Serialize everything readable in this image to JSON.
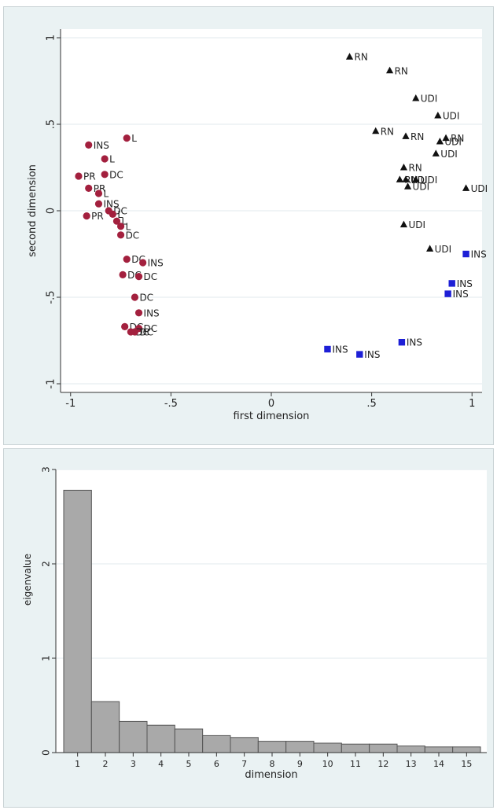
{
  "chart_data": [
    {
      "type": "scatter",
      "title": "",
      "xlabel": "first dimension",
      "ylabel": "second dimension",
      "xlim": [
        -1.05,
        1.05
      ],
      "ylim": [
        -1.05,
        1.05
      ],
      "xticks": [
        -1,
        -0.5,
        0,
        0.5,
        1
      ],
      "xtick_labels": [
        "-1",
        "-.5",
        "0",
        ".5",
        "1"
      ],
      "yticks": [
        -1,
        -0.5,
        0,
        0.5,
        1
      ],
      "ytick_labels": [
        "-1",
        "-.5",
        "0",
        ".5",
        "1"
      ],
      "grid": true,
      "groups": [
        {
          "marker": "circle",
          "color": "#a3203e",
          "points": [
            {
              "x": -0.72,
              "y": 0.42,
              "label": "L"
            },
            {
              "x": -0.91,
              "y": 0.38,
              "label": "INS"
            },
            {
              "x": -0.83,
              "y": 0.3,
              "label": "L"
            },
            {
              "x": -0.83,
              "y": 0.21,
              "label": "DC"
            },
            {
              "x": -0.96,
              "y": 0.2,
              "label": "PR"
            },
            {
              "x": -0.91,
              "y": 0.13,
              "label": "PR"
            },
            {
              "x": -0.86,
              "y": 0.1,
              "label": "L"
            },
            {
              "x": -0.86,
              "y": 0.04,
              "label": "INS"
            },
            {
              "x": -0.81,
              "y": 0.0,
              "label": "DC"
            },
            {
              "x": -0.79,
              "y": -0.02,
              "label": "L"
            },
            {
              "x": -0.92,
              "y": -0.03,
              "label": "PR"
            },
            {
              "x": -0.77,
              "y": -0.06,
              "label": "L"
            },
            {
              "x": -0.75,
              "y": -0.09,
              "label": "L"
            },
            {
              "x": -0.75,
              "y": -0.14,
              "label": "DC"
            },
            {
              "x": -0.72,
              "y": -0.28,
              "label": "DC"
            },
            {
              "x": -0.64,
              "y": -0.3,
              "label": "INS"
            },
            {
              "x": -0.74,
              "y": -0.37,
              "label": "DC"
            },
            {
              "x": -0.66,
              "y": -0.38,
              "label": "DC"
            },
            {
              "x": -0.68,
              "y": -0.5,
              "label": "DC"
            },
            {
              "x": -0.66,
              "y": -0.59,
              "label": "INS"
            },
            {
              "x": -0.73,
              "y": -0.67,
              "label": "DC"
            },
            {
              "x": -0.66,
              "y": -0.68,
              "label": "DC"
            },
            {
              "x": -0.7,
              "y": -0.7,
              "label": "DC"
            },
            {
              "x": -0.68,
              "y": -0.7,
              "label": "DC"
            }
          ]
        },
        {
          "marker": "triangle",
          "color": "#111111",
          "points": [
            {
              "x": 0.39,
              "y": 0.89,
              "label": "RN"
            },
            {
              "x": 0.59,
              "y": 0.81,
              "label": "RN"
            },
            {
              "x": 0.72,
              "y": 0.65,
              "label": "UDI"
            },
            {
              "x": 0.83,
              "y": 0.55,
              "label": "UDI"
            },
            {
              "x": 0.52,
              "y": 0.46,
              "label": "RN"
            },
            {
              "x": 0.67,
              "y": 0.43,
              "label": "RN"
            },
            {
              "x": 0.84,
              "y": 0.4,
              "label": "UDI"
            },
            {
              "x": 0.87,
              "y": 0.42,
              "label": "RN"
            },
            {
              "x": 0.82,
              "y": 0.33,
              "label": "UDI"
            },
            {
              "x": 0.66,
              "y": 0.25,
              "label": "RN"
            },
            {
              "x": 0.64,
              "y": 0.18,
              "label": "RN"
            },
            {
              "x": 0.67,
              "y": 0.18,
              "label": "UDI"
            },
            {
              "x": 0.72,
              "y": 0.18,
              "label": "UDI"
            },
            {
              "x": 0.68,
              "y": 0.14,
              "label": "UDI"
            },
            {
              "x": 0.97,
              "y": 0.13,
              "label": "UDI"
            },
            {
              "x": 0.66,
              "y": -0.08,
              "label": "UDI"
            },
            {
              "x": 0.79,
              "y": -0.22,
              "label": "UDI"
            }
          ]
        },
        {
          "marker": "square",
          "color": "#1d1fd6",
          "points": [
            {
              "x": 0.97,
              "y": -0.25,
              "label": "INS"
            },
            {
              "x": 0.9,
              "y": -0.42,
              "label": "INS"
            },
            {
              "x": 0.88,
              "y": -0.48,
              "label": "INS"
            },
            {
              "x": 0.65,
              "y": -0.76,
              "label": "INS"
            },
            {
              "x": 0.28,
              "y": -0.8,
              "label": "INS"
            },
            {
              "x": 0.44,
              "y": -0.83,
              "label": "INS"
            }
          ]
        }
      ]
    },
    {
      "type": "bar",
      "title": "",
      "xlabel": "dimension",
      "ylabel": "eigenvalue",
      "categories": [
        "1",
        "2",
        "3",
        "4",
        "5",
        "6",
        "7",
        "8",
        "9",
        "10",
        "11",
        "12",
        "13",
        "14",
        "15"
      ],
      "values": [
        2.78,
        0.54,
        0.33,
        0.29,
        0.25,
        0.18,
        0.16,
        0.12,
        0.12,
        0.1,
        0.09,
        0.09,
        0.07,
        0.06,
        0.06
      ],
      "ylim": [
        0,
        3
      ],
      "yticks": [
        0,
        1,
        2,
        3
      ],
      "ytick_labels": [
        "0",
        "1",
        "2",
        "3"
      ],
      "bar_color": "#a9a9a9",
      "grid": true
    }
  ]
}
